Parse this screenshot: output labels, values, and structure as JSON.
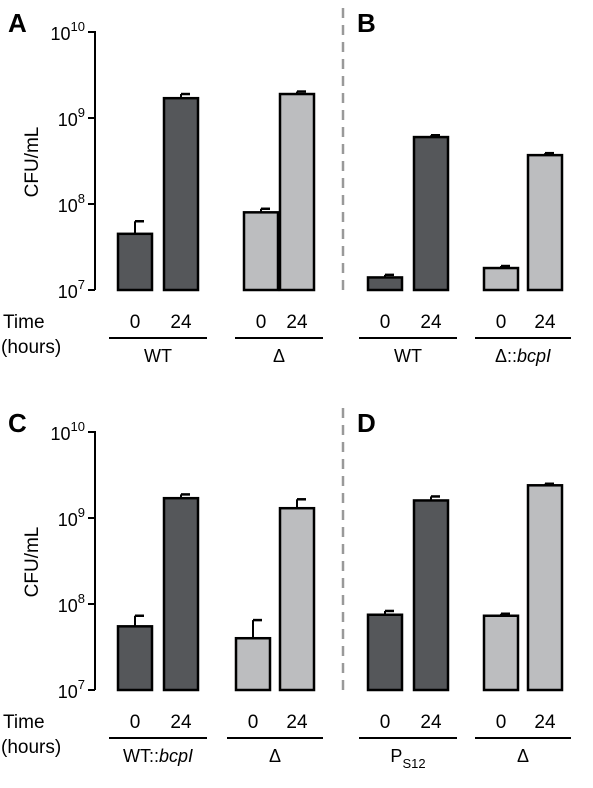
{
  "figure": {
    "y_axis_label": "CFU/mL",
    "x_axis_title_line1": "Time",
    "x_axis_title_line2": "(hours)",
    "divider_color": "#999999",
    "colors": {
      "dark": "#55575a",
      "light": "#bcbdbf",
      "outline": "#000000"
    }
  },
  "chart_data": [
    {
      "type": "bar",
      "panel_label": "A",
      "yscale": "log",
      "ylim": [
        10000000,
        10000000000
      ],
      "yticks": [
        {
          "exp": "10",
          "sup": "7",
          "value": 10000000
        },
        {
          "exp": "10",
          "sup": "8",
          "value": 100000000
        },
        {
          "exp": "10",
          "sup": "9",
          "value": 1000000000
        },
        {
          "exp": "10",
          "sup": "10",
          "value": 10000000000
        }
      ],
      "groups": [
        {
          "label": "WT",
          "bars": [
            {
              "time": "0",
              "value": 45000000,
              "error": 18000000,
              "color": "dark"
            },
            {
              "time": "24",
              "value": 1700000000,
              "error": 200000000,
              "color": "dark"
            }
          ]
        },
        {
          "label": "Δ",
          "bars": [
            {
              "time": "0",
              "value": 80000000,
              "error": 8000000,
              "color": "light"
            },
            {
              "time": "24",
              "value": 1900000000,
              "error": 130000000,
              "color": "light"
            }
          ]
        }
      ]
    },
    {
      "type": "bar",
      "panel_label": "B",
      "yscale": "log",
      "ylim": [
        10000000,
        10000000000
      ],
      "groups": [
        {
          "label": "WT",
          "bars": [
            {
              "time": "0",
              "value": 14000000,
              "error": 1000000,
              "color": "dark"
            },
            {
              "time": "24",
              "value": 600000000,
              "error": 30000000,
              "color": "dark"
            }
          ]
        },
        {
          "label": "Δ::",
          "label_italic": "bcpI",
          "bars": [
            {
              "time": "0",
              "value": 18000000,
              "error": 1000000,
              "color": "light"
            },
            {
              "time": "24",
              "value": 370000000,
              "error": 20000000,
              "color": "light"
            }
          ]
        }
      ]
    },
    {
      "type": "bar",
      "panel_label": "C",
      "yscale": "log",
      "ylim": [
        10000000,
        10000000000
      ],
      "yticks": [
        {
          "exp": "10",
          "sup": "7",
          "value": 10000000
        },
        {
          "exp": "10",
          "sup": "8",
          "value": 100000000
        },
        {
          "exp": "10",
          "sup": "9",
          "value": 1000000000
        },
        {
          "exp": "10",
          "sup": "10",
          "value": 10000000000
        }
      ],
      "groups": [
        {
          "label": "WT::",
          "label_italic": "bcpI",
          "bars": [
            {
              "time": "0",
              "value": 55000000,
              "error": 18000000,
              "color": "dark"
            },
            {
              "time": "24",
              "value": 1700000000,
              "error": 180000000,
              "color": "dark"
            }
          ]
        },
        {
          "label": "Δ",
          "bars": [
            {
              "time": "0",
              "value": 40000000,
              "error": 25000000,
              "color": "light"
            },
            {
              "time": "24",
              "value": 1300000000,
              "error": 350000000,
              "color": "light"
            }
          ]
        }
      ]
    },
    {
      "type": "bar",
      "panel_label": "D",
      "yscale": "log",
      "ylim": [
        10000000,
        10000000000
      ],
      "groups": [
        {
          "label": "P",
          "label_sub": "S12",
          "bars": [
            {
              "time": "0",
              "value": 75000000,
              "error": 8000000,
              "color": "dark"
            },
            {
              "time": "24",
              "value": 1600000000,
              "error": 180000000,
              "color": "dark"
            }
          ]
        },
        {
          "label": "Δ",
          "bars": [
            {
              "time": "0",
              "value": 73000000,
              "error": 4000000,
              "color": "light"
            },
            {
              "time": "24",
              "value": 2400000000,
              "error": 100000000,
              "color": "light"
            }
          ]
        }
      ]
    }
  ]
}
